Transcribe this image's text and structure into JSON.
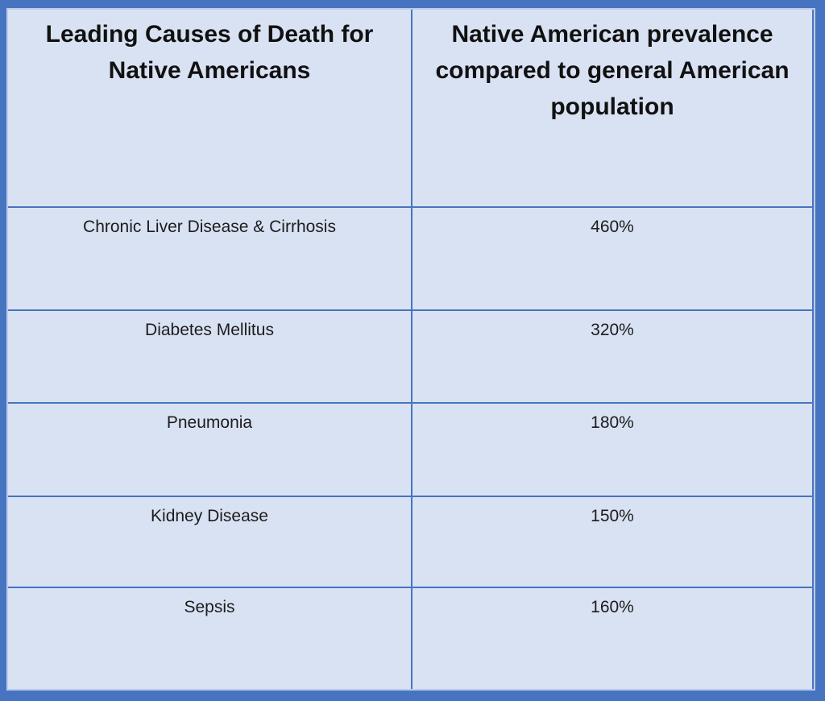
{
  "table": {
    "col1_header": "Leading Causes of Death for Native Americans",
    "col2_header": "Native American prevalence compared to general American population",
    "rows": [
      {
        "cause": "Chronic Liver Disease & Cirrhosis",
        "prevalence": "460%"
      },
      {
        "cause": "Diabetes Mellitus",
        "prevalence": "320%"
      },
      {
        "cause": "Pneumonia",
        "prevalence": "180%"
      },
      {
        "cause": "Kidney Disease",
        "prevalence": "150%"
      },
      {
        "cause": "Sepsis",
        "prevalence": "160%"
      }
    ]
  },
  "colors": {
    "frame_blue": "#4774c0",
    "grid_line_blue": "#4774c0",
    "cell_background": "#d9e2f3",
    "text": "#1c1c1c"
  },
  "chart_data": {
    "type": "table",
    "title": "",
    "columns": [
      "Leading Causes of Death for Native Americans",
      "Native American prevalence compared to general American population"
    ],
    "categories": [
      "Chronic Liver Disease & Cirrhosis",
      "Diabetes Mellitus",
      "Pneumonia",
      "Kidney Disease",
      "Sepsis"
    ],
    "values": [
      "460%",
      "320%",
      "180%",
      "150%",
      "160%"
    ],
    "values_numeric_percent": [
      460,
      320,
      180,
      150,
      160
    ]
  }
}
